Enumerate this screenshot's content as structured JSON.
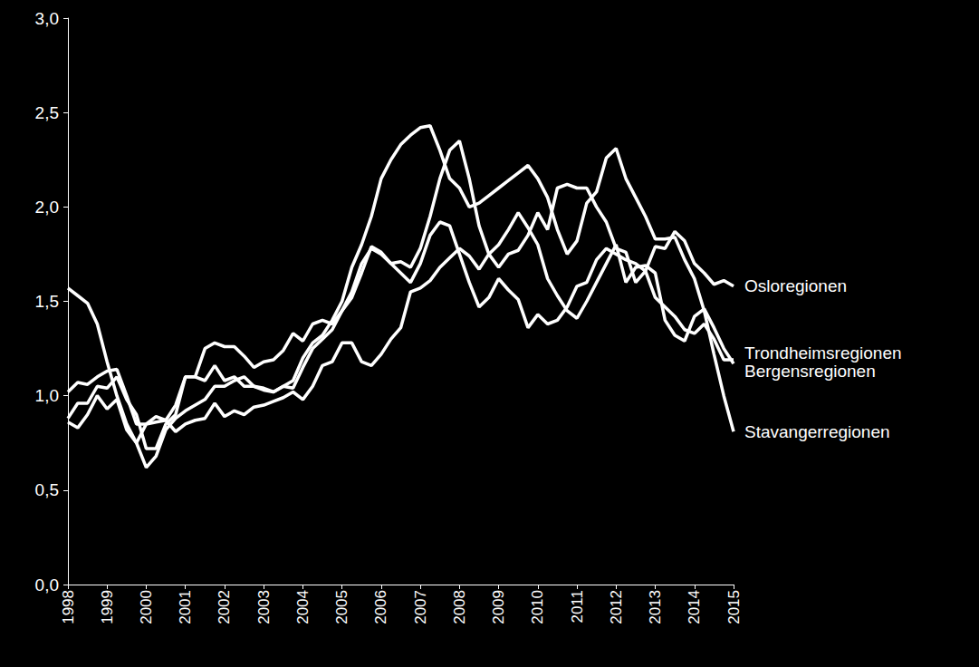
{
  "chart_data": {
    "type": "line",
    "categories": [
      "1998",
      null,
      null,
      null,
      "1999",
      null,
      null,
      null,
      "2000",
      null,
      null,
      null,
      "2001",
      null,
      null,
      null,
      "2002",
      null,
      null,
      null,
      "2003",
      null,
      null,
      null,
      "2004",
      null,
      null,
      null,
      "2005",
      null,
      null,
      null,
      "2006",
      null,
      null,
      null,
      "2007",
      null,
      null,
      null,
      "2008",
      null,
      null,
      null,
      "2009",
      null,
      null,
      null,
      "2010",
      null,
      null,
      null,
      "2011",
      null,
      null,
      null,
      "2012",
      null,
      null,
      null,
      "2013",
      null,
      null,
      null,
      "2014",
      null,
      null,
      null,
      "2015"
    ],
    "series": [
      {
        "name": "Osloregionen",
        "color": "#ffffff",
        "values": [
          1.02,
          1.07,
          1.06,
          1.1,
          1.13,
          1.14,
          1.0,
          0.85,
          0.85,
          0.89,
          0.87,
          0.95,
          1.1,
          1.1,
          1.25,
          1.28,
          1.26,
          1.26,
          1.21,
          1.15,
          1.18,
          1.19,
          1.24,
          1.33,
          1.29,
          1.38,
          1.4,
          1.38,
          1.45,
          1.52,
          1.65,
          1.79,
          1.76,
          1.7,
          1.71,
          1.68,
          1.78,
          1.95,
          2.15,
          2.3,
          2.35,
          2.15,
          1.9,
          1.75,
          1.68,
          1.75,
          1.77,
          1.85,
          1.97,
          1.88,
          2.1,
          2.12,
          2.1,
          2.1,
          2.0,
          1.92,
          1.78,
          1.76,
          1.6,
          1.66,
          1.79,
          1.78,
          1.87,
          1.82,
          1.7,
          1.65,
          1.59,
          1.61,
          1.58
        ]
      },
      {
        "name": "Trondheimsregionen",
        "color": "#ffffff",
        "values": [
          0.88,
          0.96,
          0.96,
          1.05,
          1.04,
          1.1,
          0.98,
          0.9,
          0.72,
          0.72,
          0.85,
          0.9,
          1.1,
          1.1,
          1.08,
          1.16,
          1.08,
          1.1,
          1.05,
          1.05,
          1.04,
          1.02,
          1.05,
          1.04,
          1.15,
          1.25,
          1.3,
          1.35,
          1.45,
          1.55,
          1.7,
          1.78,
          1.75,
          1.7,
          1.65,
          1.6,
          1.7,
          1.85,
          1.92,
          1.9,
          1.75,
          1.6,
          1.47,
          1.52,
          1.62,
          1.56,
          1.51,
          1.36,
          1.43,
          1.38,
          1.4,
          1.47,
          1.58,
          1.6,
          1.72,
          1.78,
          1.75,
          1.72,
          1.7,
          1.66,
          1.52,
          1.47,
          1.42,
          1.35,
          1.33,
          1.38,
          1.3,
          1.19,
          1.19
        ]
      },
      {
        "name": "Bergensregionen",
        "color": "#ffffff",
        "values": [
          0.86,
          0.83,
          0.9,
          1.0,
          0.93,
          0.98,
          0.82,
          0.75,
          0.85,
          0.86,
          0.87,
          0.81,
          0.85,
          0.87,
          0.88,
          0.96,
          0.89,
          0.92,
          0.9,
          0.94,
          0.95,
          0.97,
          0.99,
          1.02,
          0.98,
          1.05,
          1.16,
          1.18,
          1.28,
          1.28,
          1.18,
          1.16,
          1.22,
          1.3,
          1.36,
          1.55,
          1.57,
          1.61,
          1.68,
          1.73,
          1.78,
          1.74,
          1.67,
          1.75,
          1.8,
          1.88,
          1.97,
          1.89,
          1.8,
          1.62,
          1.53,
          1.45,
          1.41,
          1.5,
          1.6,
          1.7,
          1.8,
          1.6,
          1.68,
          1.69,
          1.65,
          1.4,
          1.32,
          1.29,
          1.42,
          1.46,
          1.36,
          1.25,
          1.17
        ]
      },
      {
        "name": "Stavangerregionen",
        "color": "#ffffff",
        "values": [
          1.57,
          1.53,
          1.49,
          1.38,
          1.18,
          1.0,
          0.85,
          0.75,
          0.62,
          0.68,
          0.82,
          0.88,
          0.92,
          0.95,
          0.98,
          1.05,
          1.05,
          1.08,
          1.1,
          1.05,
          1.03,
          1.02,
          1.05,
          1.08,
          1.2,
          1.28,
          1.32,
          1.4,
          1.5,
          1.68,
          1.8,
          1.95,
          2.15,
          2.25,
          2.33,
          2.38,
          2.42,
          2.43,
          2.3,
          2.15,
          2.1,
          2.0,
          2.02,
          2.06,
          2.1,
          2.14,
          2.18,
          2.22,
          2.15,
          2.05,
          1.88,
          1.75,
          1.82,
          2.02,
          2.08,
          2.26,
          2.31,
          2.15,
          2.05,
          1.95,
          1.83,
          1.83,
          1.84,
          1.72,
          1.62,
          1.45,
          1.22,
          1.0,
          0.81
        ]
      }
    ],
    "ylim": [
      0,
      3
    ],
    "yticks": [
      {
        "value": 0,
        "label": "0,0"
      },
      {
        "value": 0.5,
        "label": "0,5"
      },
      {
        "value": 1,
        "label": "1,0"
      },
      {
        "value": 1.5,
        "label": "1,5"
      },
      {
        "value": 2,
        "label": "2,0"
      },
      {
        "value": 2.5,
        "label": "2,5"
      },
      {
        "value": 3,
        "label": "3,0"
      }
    ],
    "grid": false,
    "marker": "none"
  }
}
